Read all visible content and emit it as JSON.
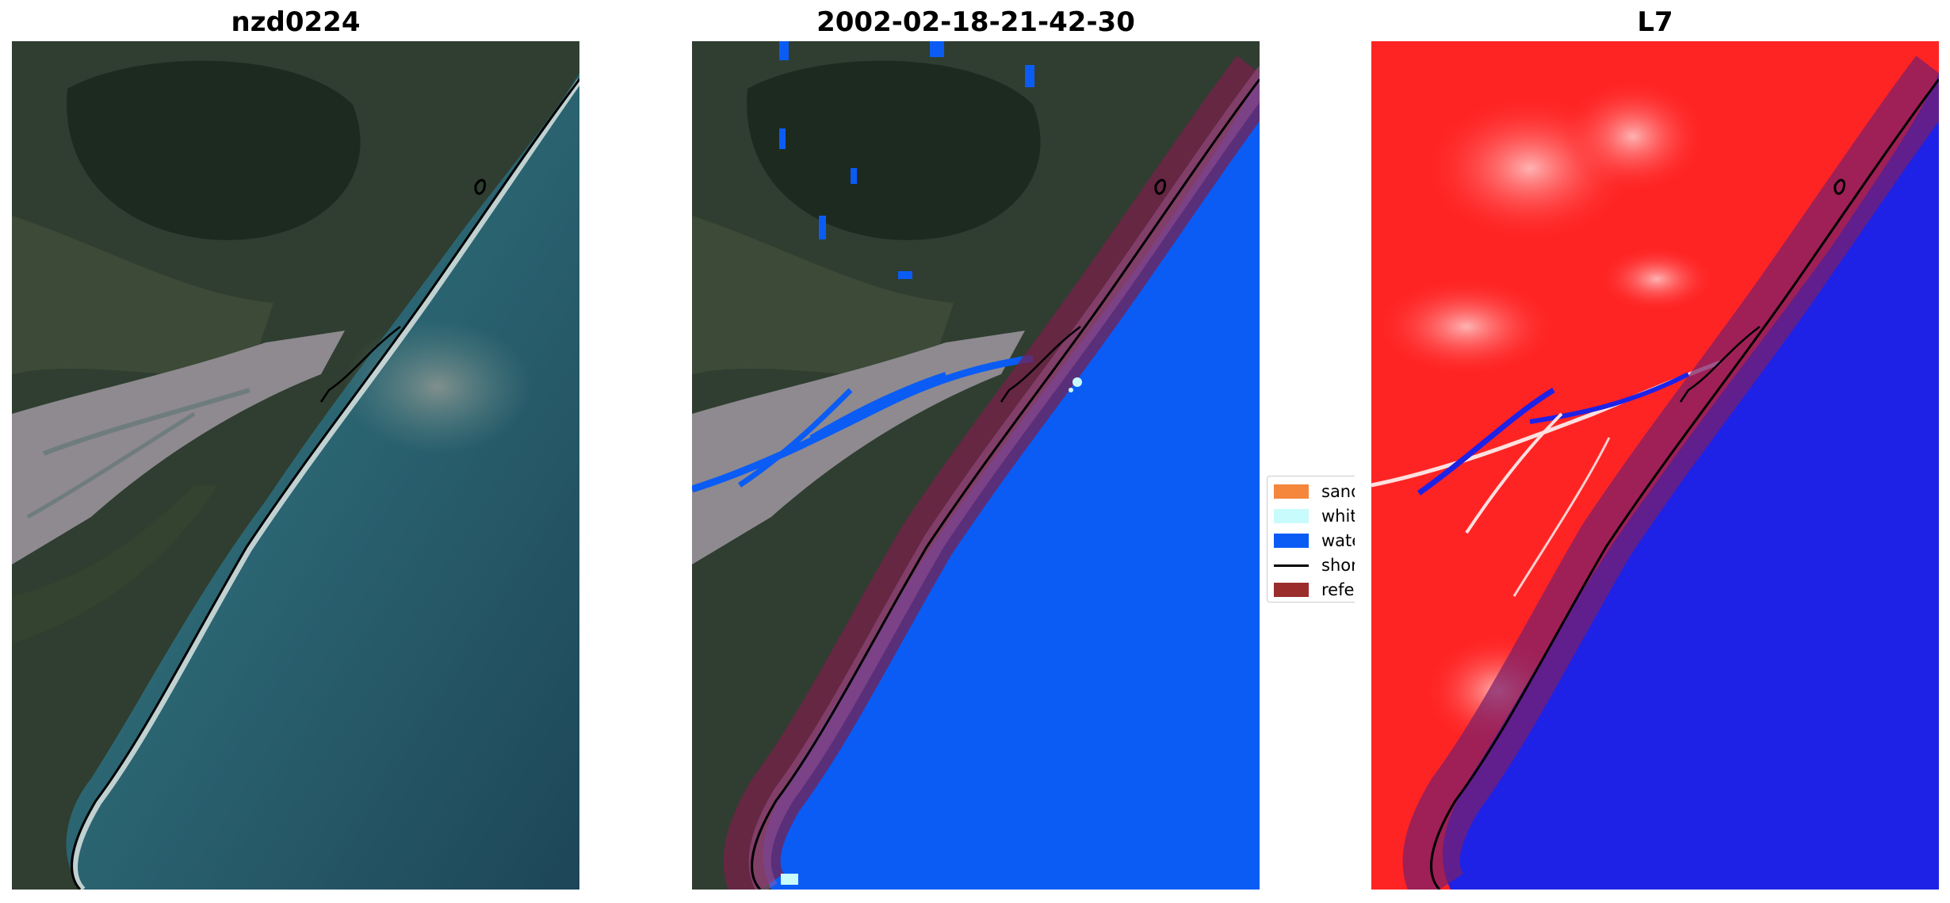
{
  "panels": [
    {
      "title": "nzd0224"
    },
    {
      "title": "2002-02-18-21-42-30"
    },
    {
      "title": "L7"
    }
  ],
  "legend": {
    "items": [
      {
        "label": "sand",
        "color": "#f4873c",
        "kind": "patch"
      },
      {
        "label": "whitew",
        "color": "#c8fbfb",
        "kind": "patch"
      },
      {
        "label": "water",
        "color": "#0a5cf5",
        "kind": "patch"
      },
      {
        "label": "shorel",
        "color": "#000000",
        "kind": "line"
      },
      {
        "label": "referen",
        "color": "#9b2c2c",
        "kind": "patch"
      }
    ]
  },
  "colors": {
    "land_dark": "#233426",
    "land_green": "#3a4a36",
    "river_gravel": "#8f8a8f",
    "ocean_rgb": "#2e6a76",
    "ocean_deep": "#1e4a5c",
    "water_class": "#0a5cf5",
    "reference_buffer": "#7a1f3f",
    "swir_land": "#ff2020",
    "swir_water": "#1e22e6",
    "shoreline": "#000000"
  }
}
